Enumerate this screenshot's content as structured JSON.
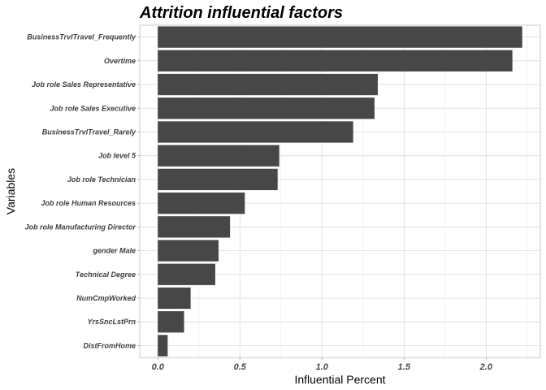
{
  "chart_data": {
    "type": "bar",
    "orientation": "horizontal",
    "title": "Attrition influential factors",
    "xlabel": "Influential Percent",
    "ylabel": "Variables",
    "categories": [
      "BusinessTrvlTravel_Frequently",
      "Overtime",
      "Job role Sales Representative",
      "Job role Sales Executive",
      "BusinessTrvlTravel_Rarely",
      "Job level 5",
      "Job role Technician",
      "Job role Human Resources",
      "Job role Manufacturing Director",
      "gender Male",
      "Technical Degree",
      "NumCmpWorked",
      "YrsSncLstPrn",
      "DistFromHome"
    ],
    "values": [
      2.22,
      2.16,
      1.34,
      1.32,
      1.19,
      0.74,
      0.73,
      0.53,
      0.44,
      0.37,
      0.35,
      0.2,
      0.16,
      0.06
    ],
    "xlim": [
      -0.11,
      2.33
    ],
    "xticks": [
      0.0,
      0.5,
      1.0,
      1.5,
      2.0
    ],
    "xtick_labels": [
      "0.0",
      "0.5",
      "1.0",
      "1.5",
      "2.0"
    ],
    "grid": true,
    "legend": "none",
    "bar_color": "#474747"
  }
}
